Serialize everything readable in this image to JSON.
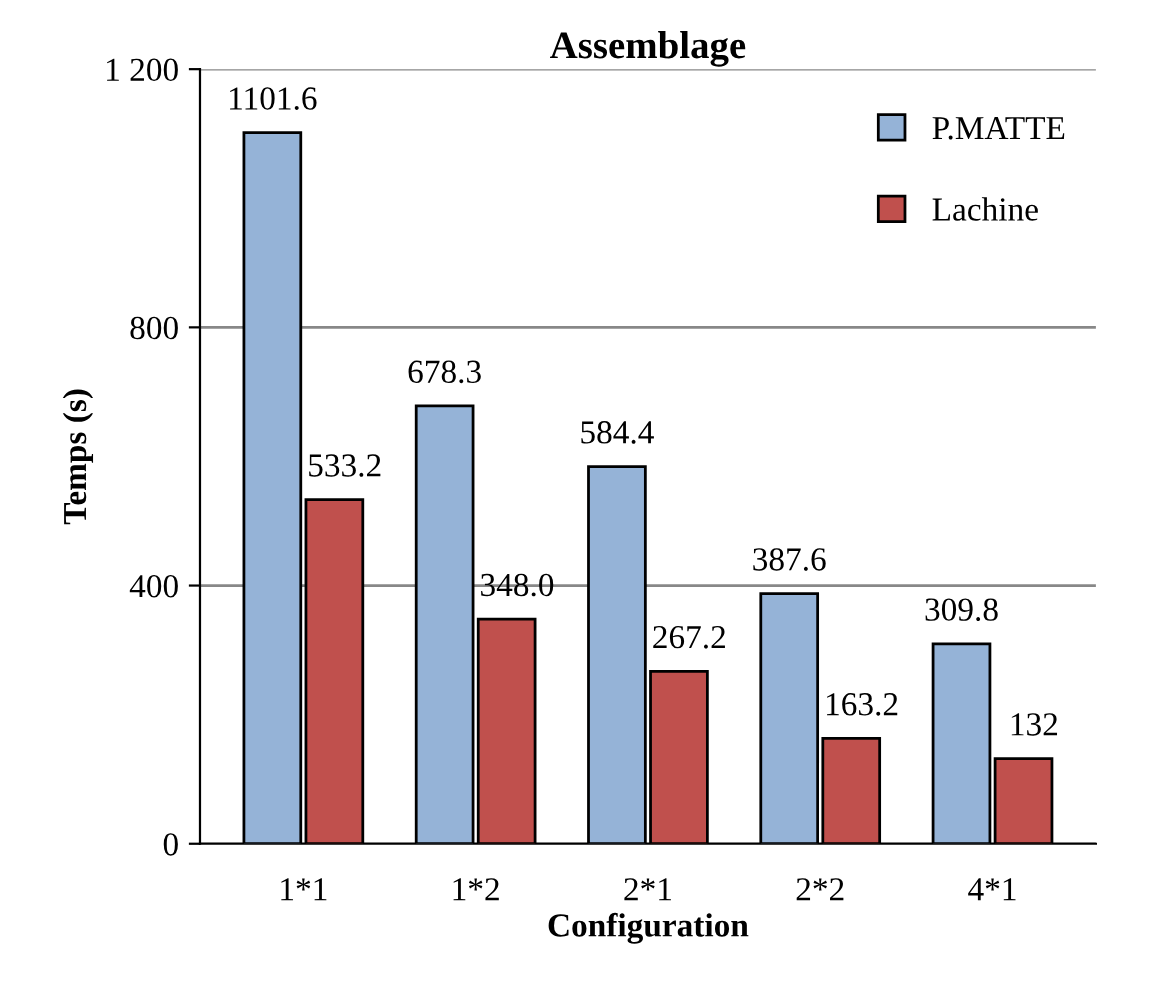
{
  "chart_data": {
    "type": "bar",
    "title": "Assemblage",
    "xlabel": "Configuration",
    "ylabel": "Temps (s)",
    "categories": [
      "1*1",
      "1*2",
      "2*1",
      "2*2",
      "4*1"
    ],
    "series": [
      {
        "name": "P.MATTE",
        "color": "#95b3d7",
        "values": [
          1101.6,
          678.3,
          584.4,
          387.6,
          309.8
        ],
        "value_labels": [
          "1101.6",
          "678.3",
          "584.4",
          "387.6",
          "309.8"
        ]
      },
      {
        "name": "Lachine",
        "color": "#c0504d",
        "values": [
          533.2,
          348.0,
          267.2,
          163.2,
          132
        ],
        "value_labels": [
          "533.2",
          "348.0",
          "267.2",
          "163.2",
          "132"
        ]
      }
    ],
    "ylim": [
      0,
      1200
    ],
    "yticks": [
      0,
      400,
      800,
      {
        "value": 1200,
        "label": "1 200"
      }
    ],
    "grid": "y",
    "legend": "top right"
  }
}
